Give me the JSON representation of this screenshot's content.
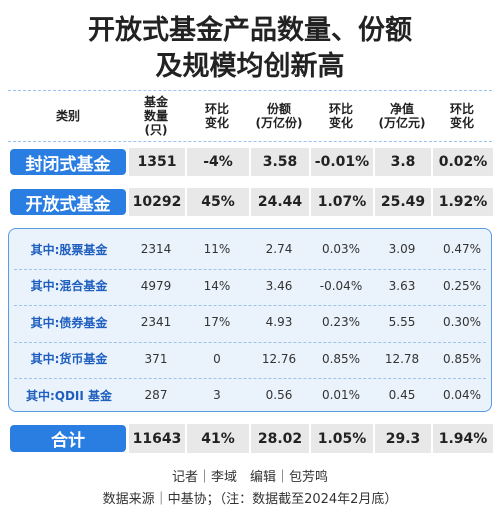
{
  "title": [
    "开放式基金产品数量、份额",
    "及规模均创新高"
  ],
  "table": {
    "header": [
      [
        "类别"
      ],
      [
        "基金",
        "数量",
        "(只)"
      ],
      [
        "环比",
        "变化"
      ],
      [
        "份额",
        "(万亿份)"
      ],
      [
        "环比",
        "变化"
      ],
      [
        "净值",
        "(万亿元)"
      ],
      [
        "环比",
        "变化"
      ]
    ],
    "main_rows": [
      [
        "封闭式基金",
        "1351",
        "-4%",
        "3.58",
        "-0.01%",
        "3.8",
        "0.02%"
      ],
      [
        "开放式基金",
        "10292",
        "45%",
        "24.44",
        "1.07%",
        "25.49",
        "1.92%"
      ]
    ],
    "sub_rows": [
      [
        "其中:股票基金",
        "2314",
        "11%",
        "2.74",
        "0.03%",
        "3.09",
        "0.47%"
      ],
      [
        "其中:混合基金",
        "4979",
        "14%",
        "3.46",
        "-0.04%",
        "3.63",
        "0.25%"
      ],
      [
        "其中:债券基金",
        "2341",
        "17%",
        "4.93",
        "0.23%",
        "5.55",
        "0.30%"
      ],
      [
        "其中:货币基金",
        "371",
        "0",
        "12.76",
        "0.85%",
        "12.78",
        "0.85%"
      ],
      [
        "其中:QDII 基金",
        "287",
        "3",
        "0.56",
        "0.01%",
        "0.45",
        "0.04%"
      ]
    ],
    "total_row": [
      "合计",
      "11643",
      "41%",
      "28.02",
      "1.05%",
      "29.3",
      "1.94%"
    ]
  },
  "footer": [
    "记者｜李域　编辑｜包芳鸣",
    "数据来源｜中基协；（注：数据截至2024年2月底）"
  ]
}
